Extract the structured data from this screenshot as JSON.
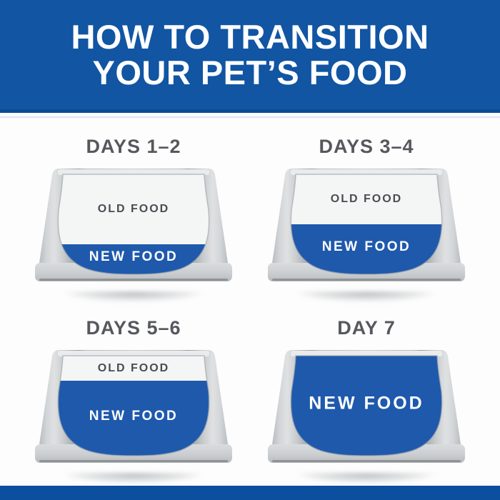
{
  "header": {
    "title_line1": "HOW TO TRANSITION",
    "title_line2": "YOUR PET’S FOOD"
  },
  "steps": [
    {
      "title": "DAYS 1–2",
      "old_food_label": "OLD FOOD",
      "new_food_label": "NEW FOOD",
      "new_food_percent": 30
    },
    {
      "title": "DAYS 3–4",
      "old_food_label": "OLD FOOD",
      "new_food_label": "NEW FOOD",
      "new_food_percent": 50
    },
    {
      "title": "DAYS 5–6",
      "old_food_label": "OLD FOOD",
      "new_food_label": "NEW FOOD",
      "new_food_percent": 75
    },
    {
      "title": "DAY 7",
      "old_food_label": "",
      "new_food_label": "NEW FOOD",
      "new_food_percent": 100
    }
  ],
  "colors": {
    "banner_blue": "#1155a3",
    "banner_border": "#0c4a92",
    "footer_blue": "#0b4f9e",
    "bowl_blue": "#1e59ac",
    "heading_gray": "#56585d",
    "old_food_text": "#494d52"
  }
}
